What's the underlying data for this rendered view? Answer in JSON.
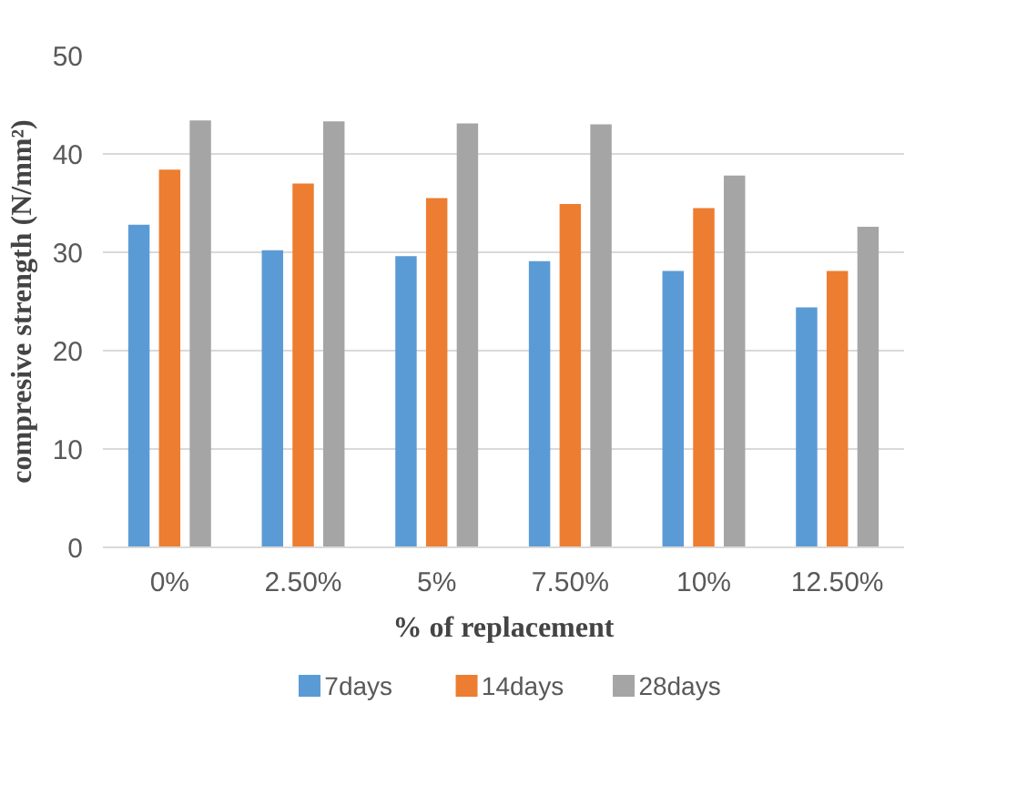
{
  "chart_data": {
    "type": "bar",
    "xlabel": "% of replacement",
    "ylabel": "compresive strength (N/mm²)",
    "categories": [
      "0%",
      "2.50%",
      "5%",
      "7.50%",
      "10%",
      "12.50%"
    ],
    "series": [
      {
        "name": "7days",
        "color": "#5b9bd5",
        "values": [
          32.8,
          30.2,
          29.6,
          29.1,
          28.1,
          24.4
        ]
      },
      {
        "name": "14days",
        "color": "#ed7d31",
        "values": [
          38.4,
          37.0,
          35.5,
          34.9,
          34.5,
          28.1
        ]
      },
      {
        "name": "28days",
        "color": "#a5a5a5",
        "values": [
          43.4,
          43.3,
          43.1,
          43.0,
          37.8,
          32.6
        ]
      }
    ],
    "ylim": [
      0,
      50
    ],
    "yticks": [
      0,
      10,
      20,
      30,
      40,
      50
    ],
    "grid": "y",
    "legend": "bottom"
  }
}
